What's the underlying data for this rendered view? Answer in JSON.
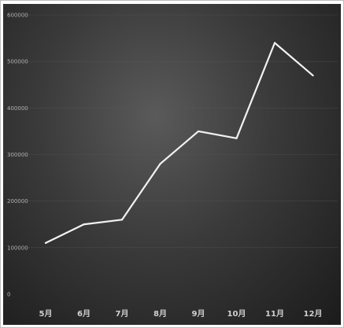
{
  "chart_data": {
    "type": "line",
    "title": "",
    "xlabel": "",
    "ylabel": "",
    "categories": [
      "5月",
      "6月",
      "7月",
      "8月",
      "9月",
      "10月",
      "11月",
      "12月"
    ],
    "series": [
      {
        "values": [
          110000,
          150000,
          160000,
          280000,
          350000,
          335000,
          540000,
          470000
        ]
      }
    ],
    "ylim": [
      0,
      600000
    ],
    "y_ticks": [
      "0",
      "100000",
      "200000",
      "300000",
      "400000",
      "500000",
      "600000"
    ],
    "grid": true,
    "legend": "none",
    "colors": {
      "line": "#f2f2f2",
      "grid": "#5a5a5a",
      "axis_text": "#b0b0b0"
    }
  }
}
